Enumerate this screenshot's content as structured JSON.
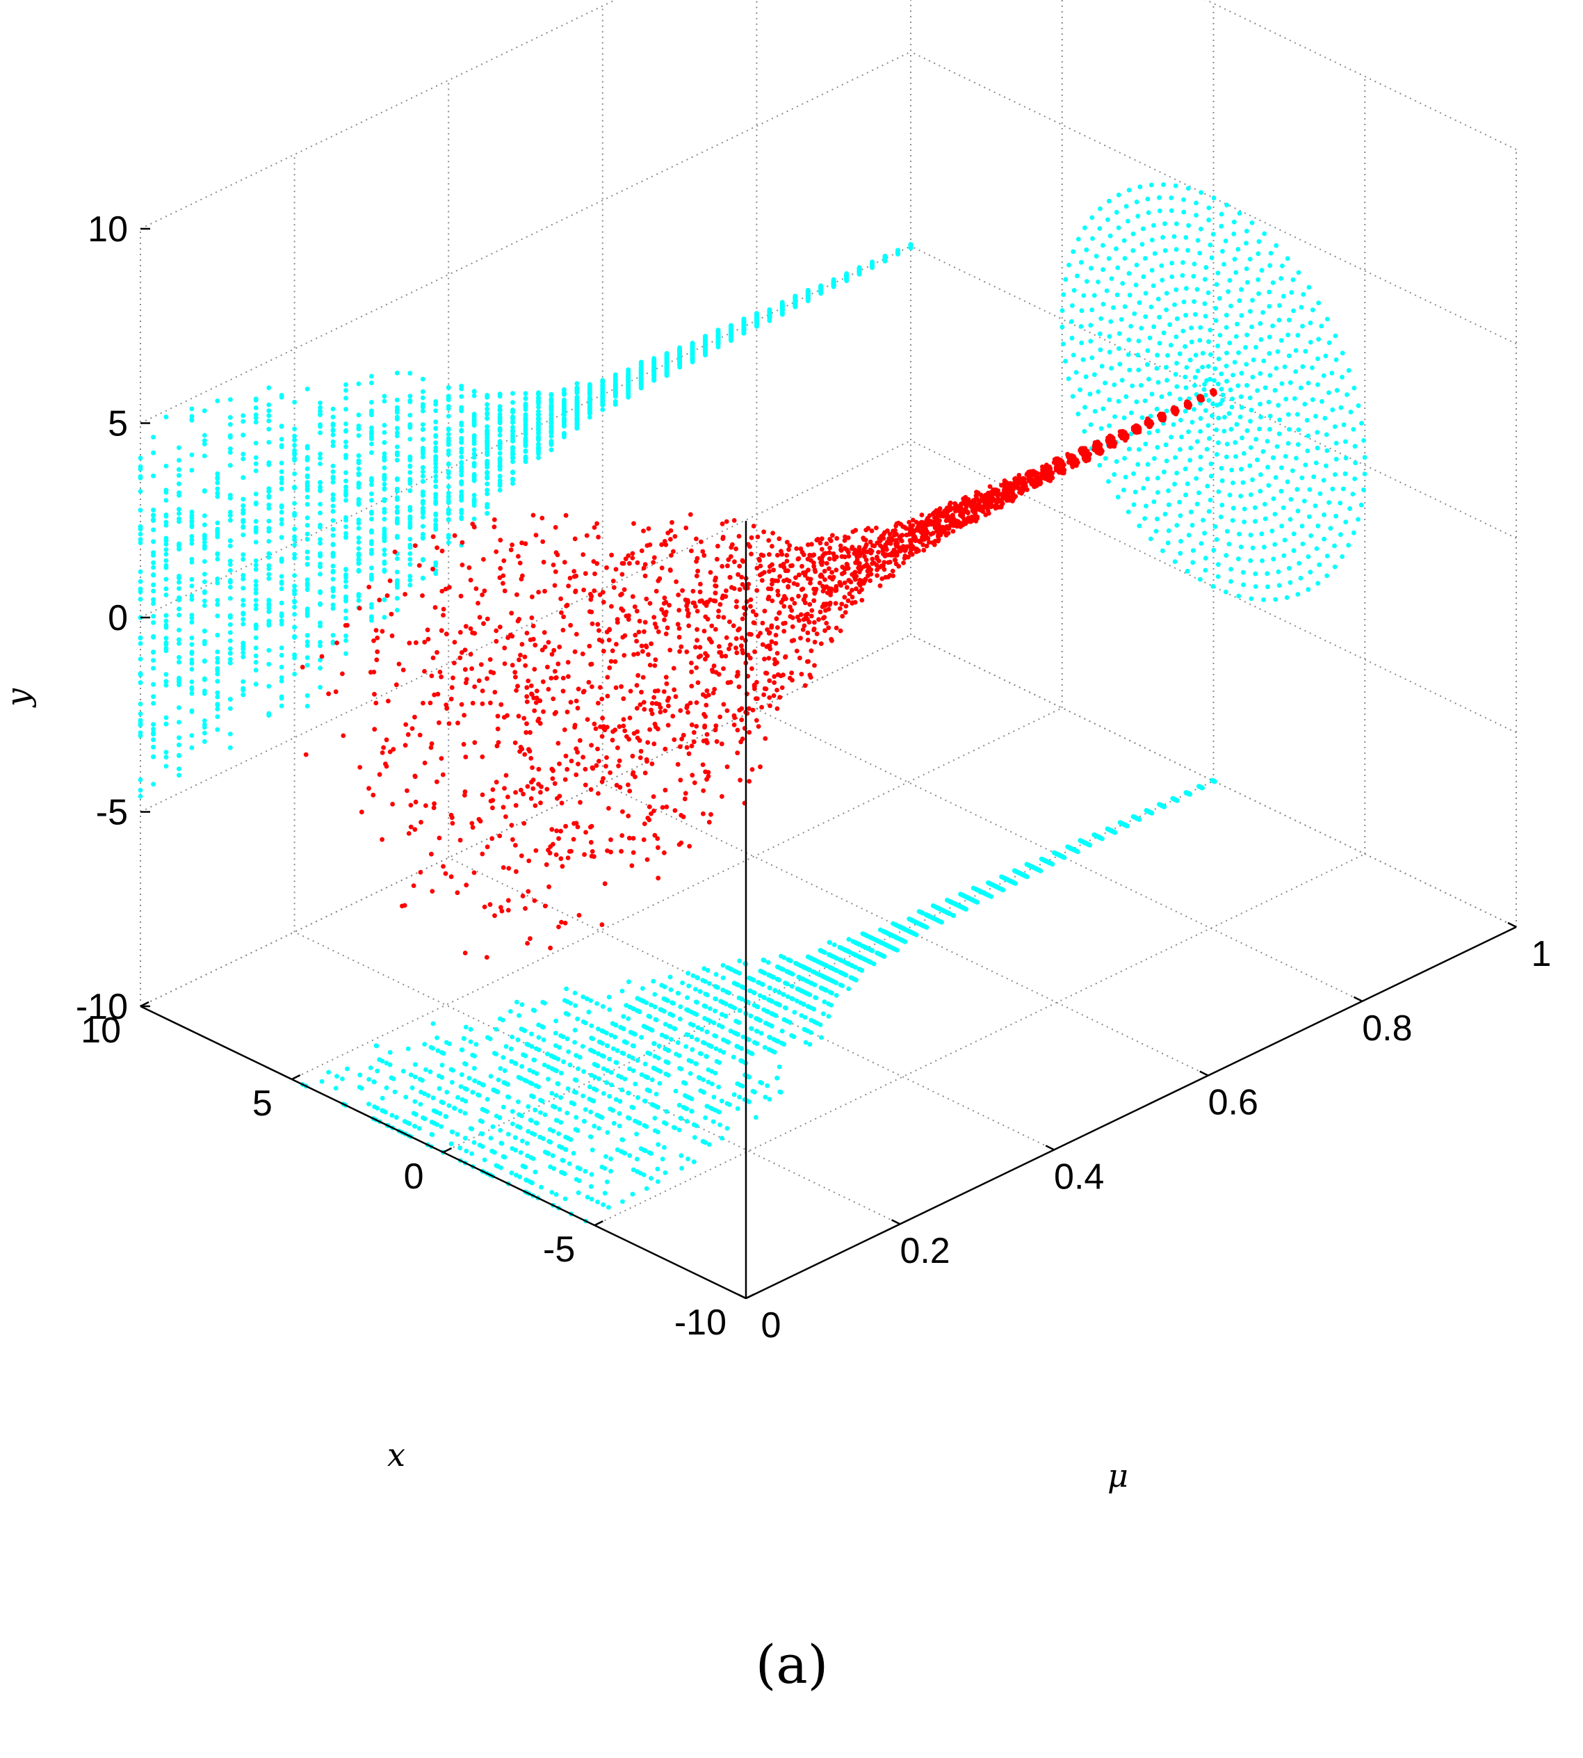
{
  "caption": "(a)",
  "colors": {
    "main_series": "#ff0000",
    "projection_series": "#00ffff",
    "grid": "#8a8a8a",
    "axis": "#000000"
  },
  "chart_data": {
    "type": "scatter",
    "projection": "3d",
    "title": "",
    "xlabel": "x",
    "ylabel": "y",
    "zlabel": "μ",
    "xlim": [
      -10,
      10
    ],
    "ylim": [
      -10,
      10
    ],
    "mulim": [
      0,
      1
    ],
    "grid": true,
    "xticks": [
      "-10",
      "-5",
      "0",
      "5",
      "10"
    ],
    "yticks": [
      "-10",
      "-5",
      "0",
      "5",
      "10"
    ],
    "muticks": [
      "0",
      "0.2",
      "0.4",
      "0.6",
      "0.8",
      "1"
    ],
    "series": [
      {
        "role": "3-D point cloud",
        "color": "#ff0000",
        "shape": "family of closed loops around the axis x=0, y=0, radius shrinking as μ grows",
        "radius_vs_mu": [
          [
            0.0,
            5.0
          ],
          [
            0.1,
            4.9
          ],
          [
            0.2,
            4.5
          ],
          [
            0.3,
            3.7
          ],
          [
            0.4,
            2.4
          ],
          [
            0.5,
            1.0
          ],
          [
            0.6,
            0.45
          ],
          [
            0.7,
            0.3
          ],
          [
            0.8,
            0.2
          ],
          [
            0.9,
            0.12
          ],
          [
            1.0,
            0.05
          ]
        ]
      },
      {
        "role": "projection onto x-μ plane (y = -10)",
        "color": "#00ffff",
        "radius_vs_mu": [
          [
            0.0,
            5.0
          ],
          [
            0.1,
            4.9
          ],
          [
            0.2,
            4.5
          ],
          [
            0.3,
            3.7
          ],
          [
            0.4,
            2.4
          ],
          [
            0.5,
            1.0
          ],
          [
            0.6,
            0.45
          ],
          [
            0.7,
            0.3
          ],
          [
            0.8,
            0.2
          ],
          [
            0.9,
            0.12
          ],
          [
            1.0,
            0.05
          ]
        ]
      },
      {
        "role": "projection onto y-μ plane (x = 10)",
        "color": "#00ffff",
        "radius_vs_mu": [
          [
            0.0,
            5.0
          ],
          [
            0.1,
            4.9
          ],
          [
            0.2,
            4.5
          ],
          [
            0.3,
            3.7
          ],
          [
            0.4,
            2.4
          ],
          [
            0.5,
            1.0
          ],
          [
            0.6,
            0.45
          ],
          [
            0.7,
            0.3
          ],
          [
            0.8,
            0.2
          ],
          [
            0.9,
            0.12
          ],
          [
            1.0,
            0.05
          ]
        ]
      },
      {
        "role": "projection onto x-y plane (μ = 1)",
        "color": "#00ffff",
        "shape": "disk of closed orbits centred on x=0, y=0",
        "max_radius": 5.0
      }
    ]
  }
}
